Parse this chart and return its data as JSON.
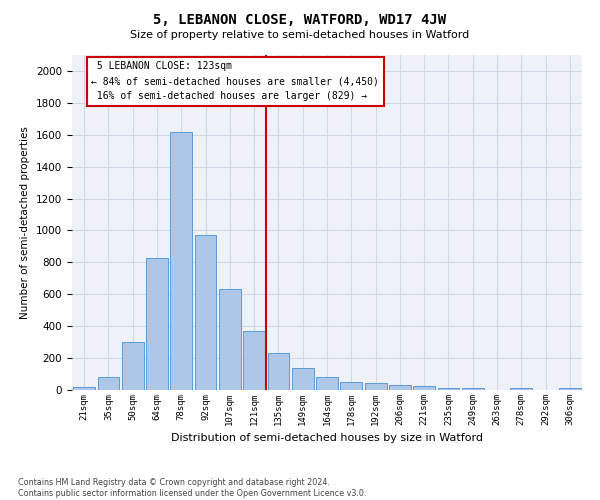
{
  "title": "5, LEBANON CLOSE, WATFORD, WD17 4JW",
  "subtitle": "Size of property relative to semi-detached houses in Watford",
  "xlabel": "Distribution of semi-detached houses by size in Watford",
  "ylabel": "Number of semi-detached properties",
  "property_label": "5 LEBANON CLOSE: 123sqm",
  "smaller_pct": 84,
  "smaller_n": 4450,
  "larger_pct": 16,
  "larger_n": 829,
  "bar_labels": [
    "21sqm",
    "35sqm",
    "50sqm",
    "64sqm",
    "78sqm",
    "92sqm",
    "107sqm",
    "121sqm",
    "135sqm",
    "149sqm",
    "164sqm",
    "178sqm",
    "192sqm",
    "206sqm",
    "221sqm",
    "235sqm",
    "249sqm",
    "263sqm",
    "278sqm",
    "292sqm",
    "306sqm"
  ],
  "bar_values": [
    20,
    80,
    300,
    830,
    1620,
    970,
    635,
    370,
    230,
    135,
    80,
    50,
    45,
    30,
    25,
    10,
    10,
    0,
    15,
    0,
    15
  ],
  "bar_color": "#aec6e8",
  "bar_edge_color": "#5b9bd5",
  "vline_color": "#cc0000",
  "annotation_box_color": "#cc0000",
  "grid_color": "#d0d8e8",
  "background_color": "#eef2f8",
  "ylim": [
    0,
    2100
  ],
  "yticks": [
    0,
    200,
    400,
    600,
    800,
    1000,
    1200,
    1400,
    1600,
    1800,
    2000
  ],
  "footnote": "Contains HM Land Registry data © Crown copyright and database right 2024.\nContains public sector information licensed under the Open Government Licence v3.0."
}
